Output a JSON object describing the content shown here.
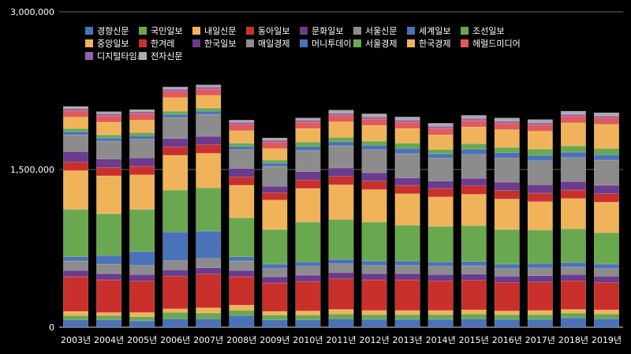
{
  "chart_data": {
    "type": "bar",
    "stacked": true,
    "title": "",
    "xlabel": "",
    "ylabel": "",
    "ylim": [
      0,
      3000000
    ],
    "yticks": [
      "0",
      "1,500,000",
      "3,000,000"
    ],
    "grid": true,
    "legend_position": "top",
    "categories": [
      "2003년",
      "2004년",
      "2005년",
      "2006년",
      "2007년",
      "2008년",
      "2009년",
      "2010년",
      "2011년",
      "2012년",
      "2013년",
      "2014년",
      "2015년",
      "2016년",
      "2017년",
      "2018년",
      "2019년"
    ],
    "series": [
      {
        "name": "경향신문",
        "color": "#4a72b8",
        "values": [
          70000,
          70000,
          60000,
          80000,
          80000,
          110000,
          70000,
          70000,
          80000,
          75000,
          75000,
          75000,
          80000,
          75000,
          75000,
          90000,
          80000
        ]
      },
      {
        "name": "국민일보",
        "color": "#6aa84f",
        "values": [
          40000,
          40000,
          40000,
          60000,
          55000,
          50000,
          45000,
          45000,
          45000,
          45000,
          45000,
          45000,
          45000,
          45000,
          45000,
          45000,
          45000
        ]
      },
      {
        "name": "내일신문",
        "color": "#f0b35a",
        "values": [
          40000,
          30000,
          40000,
          35000,
          50000,
          50000,
          35000,
          40000,
          45000,
          40000,
          40000,
          40000,
          40000,
          35000,
          40000,
          35000,
          40000
        ]
      },
      {
        "name": "동아일보",
        "color": "#c9302c",
        "values": [
          330000,
          310000,
          300000,
          310000,
          320000,
          270000,
          270000,
          280000,
          290000,
          290000,
          290000,
          280000,
          280000,
          270000,
          270000,
          270000,
          260000
        ]
      },
      {
        "name": "문화일보",
        "color": "#6b3b8e",
        "values": [
          60000,
          60000,
          60000,
          60000,
          60000,
          60000,
          60000,
          60000,
          60000,
          60000,
          60000,
          60000,
          60000,
          60000,
          60000,
          60000,
          60000
        ]
      },
      {
        "name": "서울신문",
        "color": "#8c8c8c",
        "values": [
          90000,
          90000,
          90000,
          90000,
          90000,
          90000,
          80000,
          85000,
          85000,
          80000,
          80000,
          80000,
          80000,
          75000,
          75000,
          75000,
          75000
        ]
      },
      {
        "name": "세계일보",
        "color": "#4a72b8",
        "values": [
          40000,
          80000,
          130000,
          270000,
          260000,
          40000,
          40000,
          40000,
          40000,
          40000,
          40000,
          40000,
          40000,
          40000,
          40000,
          40000,
          40000
        ]
      },
      {
        "name": "조선일보",
        "color": "#6aa84f",
        "values": [
          450000,
          400000,
          400000,
          400000,
          410000,
          370000,
          330000,
          380000,
          380000,
          370000,
          340000,
          340000,
          340000,
          330000,
          320000,
          320000,
          300000
        ]
      },
      {
        "name": "중앙일보",
        "color": "#f0b35a",
        "values": [
          370000,
          360000,
          330000,
          330000,
          330000,
          310000,
          280000,
          320000,
          330000,
          310000,
          300000,
          280000,
          300000,
          290000,
          270000,
          290000,
          290000
        ]
      },
      {
        "name": "한겨레",
        "color": "#c9302c",
        "values": [
          80000,
          80000,
          80000,
          80000,
          80000,
          80000,
          70000,
          80000,
          80000,
          80000,
          80000,
          80000,
          80000,
          80000,
          80000,
          80000,
          80000
        ]
      },
      {
        "name": "한국일보",
        "color": "#6b3b8e",
        "values": [
          100000,
          80000,
          80000,
          80000,
          80000,
          80000,
          60000,
          80000,
          80000,
          80000,
          70000,
          70000,
          70000,
          80000,
          80000,
          80000,
          80000
        ]
      },
      {
        "name": "매일경제",
        "color": "#8c8c8c",
        "values": [
          160000,
          170000,
          180000,
          200000,
          210000,
          180000,
          190000,
          200000,
          210000,
          220000,
          230000,
          220000,
          230000,
          230000,
          230000,
          230000,
          240000
        ]
      },
      {
        "name": "머니투데이",
        "color": "#4a72b8",
        "values": [
          30000,
          30000,
          30000,
          30000,
          30000,
          30000,
          30000,
          40000,
          40000,
          40000,
          50000,
          40000,
          50000,
          50000,
          50000,
          50000,
          50000
        ]
      },
      {
        "name": "서울경제",
        "color": "#6aa84f",
        "values": [
          30000,
          30000,
          30000,
          30000,
          30000,
          30000,
          30000,
          40000,
          40000,
          40000,
          50000,
          40000,
          50000,
          50000,
          60000,
          60000,
          60000
        ]
      },
      {
        "name": "한국경제",
        "color": "#f0b35a",
        "values": [
          110000,
          120000,
          120000,
          130000,
          120000,
          120000,
          110000,
          130000,
          150000,
          150000,
          140000,
          140000,
          160000,
          170000,
          170000,
          220000,
          230000
        ]
      },
      {
        "name": "헤럴드미디어",
        "color": "#e05a5a",
        "values": [
          60000,
          60000,
          60000,
          60000,
          60000,
          60000,
          60000,
          60000,
          60000,
          60000,
          60000,
          60000,
          60000,
          60000,
          60000,
          60000,
          60000
        ]
      },
      {
        "name": "디지털타임스",
        "color": "#9b5fb0",
        "values": [
          20000,
          20000,
          20000,
          20000,
          20000,
          20000,
          20000,
          20000,
          20000,
          20000,
          20000,
          20000,
          20000,
          20000,
          20000,
          20000,
          20000
        ]
      },
      {
        "name": "전자신문",
        "color": "#aaaaaa",
        "values": [
          20000,
          20000,
          20000,
          20000,
          20000,
          20000,
          20000,
          20000,
          30000,
          30000,
          30000,
          30000,
          30000,
          30000,
          30000,
          30000,
          30000
        ]
      }
    ]
  }
}
